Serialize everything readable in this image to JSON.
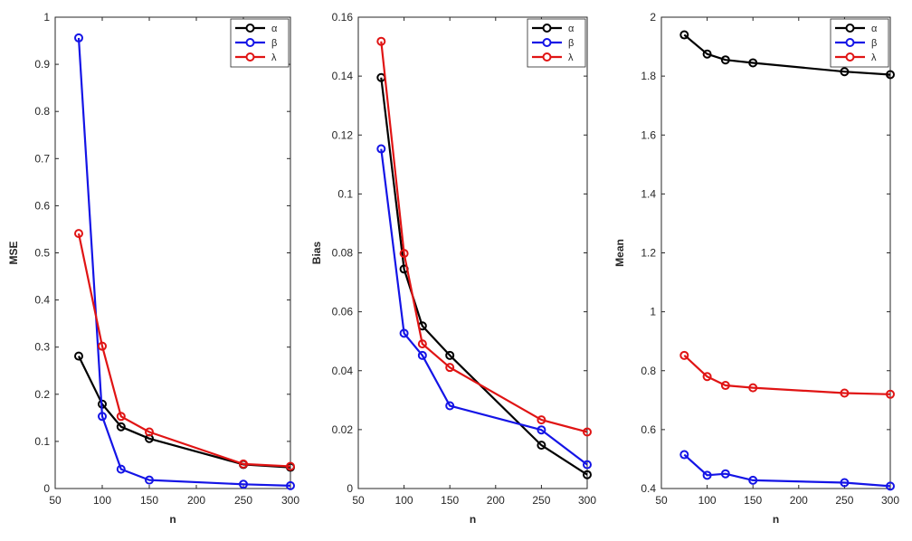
{
  "colors": {
    "alpha": "#000000",
    "beta": "#1414e6",
    "lambda": "#e01414"
  },
  "chart_data": [
    {
      "type": "line",
      "xlabel": "n",
      "ylabel": "MSE",
      "x": [
        75,
        100,
        120,
        150,
        250,
        300
      ],
      "xlim": [
        50,
        300
      ],
      "xticks": [
        50,
        100,
        150,
        200,
        250,
        300
      ],
      "xtick_labels": [
        "50",
        "100",
        "150",
        "200",
        "250",
        "300"
      ],
      "ylim": [
        0,
        1
      ],
      "yticks": [
        0,
        0.1,
        0.2,
        0.3,
        0.4,
        0.5,
        0.6,
        0.7,
        0.8,
        0.9,
        1
      ],
      "ytick_labels": [
        "0",
        "0.1",
        "0.2",
        "0.3",
        "0.4",
        "0.5",
        "0.6",
        "0.7",
        "0.8",
        "0.9",
        "1"
      ],
      "legend_position": "top-right",
      "series": [
        {
          "name": "α",
          "color_key": "alpha",
          "values": [
            0.281,
            0.179,
            0.131,
            0.106,
            0.051,
            0.045
          ]
        },
        {
          "name": "β",
          "color_key": "beta",
          "values": [
            0.956,
            0.153,
            0.041,
            0.018,
            0.009,
            0.006
          ]
        },
        {
          "name": "λ",
          "color_key": "lambda",
          "values": [
            0.541,
            0.302,
            0.153,
            0.12,
            0.052,
            0.047
          ]
        }
      ]
    },
    {
      "type": "line",
      "xlabel": "n",
      "ylabel": "Bias",
      "x": [
        75,
        100,
        120,
        150,
        250,
        300
      ],
      "xlim": [
        50,
        300
      ],
      "xticks": [
        50,
        100,
        150,
        200,
        250,
        300
      ],
      "xtick_labels": [
        "50",
        "100",
        "150",
        "200",
        "250",
        "300"
      ],
      "ylim": [
        0,
        0.16
      ],
      "yticks": [
        0,
        0.02,
        0.04,
        0.06,
        0.08,
        0.1,
        0.12,
        0.14,
        0.16
      ],
      "ytick_labels": [
        "0",
        "0.02",
        "0.04",
        "0.06",
        "0.08",
        "0.1",
        "0.12",
        "0.14",
        "0.16"
      ],
      "legend_position": "top-right",
      "series": [
        {
          "name": "α",
          "color_key": "alpha",
          "values": [
            0.1395,
            0.0745,
            0.0552,
            0.0452,
            0.0147,
            0.0047
          ]
        },
        {
          "name": "β",
          "color_key": "beta",
          "values": [
            0.1153,
            0.0527,
            0.0452,
            0.0281,
            0.0199,
            0.0081
          ]
        },
        {
          "name": "λ",
          "color_key": "lambda",
          "values": [
            0.1518,
            0.0798,
            0.0491,
            0.0411,
            0.0233,
            0.0192
          ]
        }
      ]
    },
    {
      "type": "line",
      "xlabel": "n",
      "ylabel": "Mean",
      "x": [
        75,
        100,
        120,
        150,
        250,
        300
      ],
      "xlim": [
        50,
        300
      ],
      "xticks": [
        50,
        100,
        150,
        200,
        250,
        300
      ],
      "xtick_labels": [
        "50",
        "100",
        "150",
        "200",
        "250",
        "300"
      ],
      "ylim": [
        0.4,
        2
      ],
      "yticks": [
        0.4,
        0.6,
        0.8,
        1,
        1.2,
        1.4,
        1.6,
        1.8,
        2
      ],
      "ytick_labels": [
        "0.4",
        "0.6",
        "0.8",
        "1",
        "1.2",
        "1.4",
        "1.6",
        "1.8",
        "2"
      ],
      "legend_position": "top-right",
      "series": [
        {
          "name": "α",
          "color_key": "alpha",
          "values": [
            1.94,
            1.875,
            1.855,
            1.845,
            1.815,
            1.805
          ]
        },
        {
          "name": "β",
          "color_key": "beta",
          "values": [
            0.515,
            0.445,
            0.45,
            0.428,
            0.42,
            0.408
          ]
        },
        {
          "name": "λ",
          "color_key": "lambda",
          "values": [
            0.852,
            0.78,
            0.75,
            0.742,
            0.724,
            0.72
          ]
        }
      ]
    }
  ]
}
